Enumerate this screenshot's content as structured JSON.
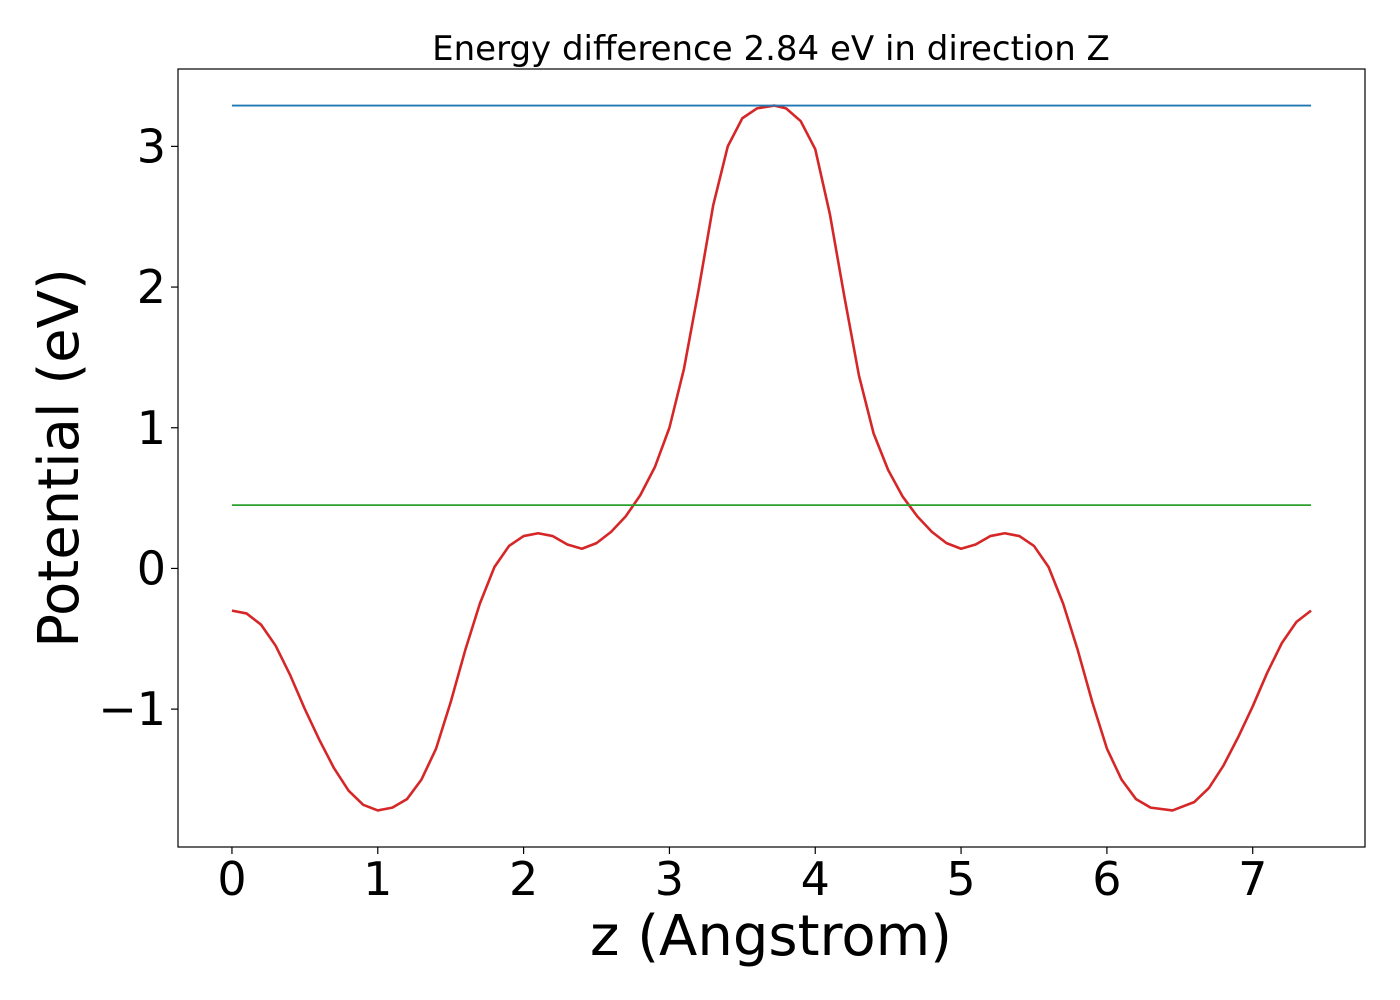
{
  "chart_data": {
    "type": "line",
    "title": "Energy difference 2.84 eV in direction Z",
    "xlabel": "z (Angstrom)",
    "ylabel": "Potential (eV)",
    "xlim": [
      -0.37,
      7.77
    ],
    "ylim": [
      -1.98,
      3.55
    ],
    "xticks": [
      0,
      1,
      2,
      3,
      4,
      5,
      6,
      7
    ],
    "xtick_labels": [
      "0",
      "1",
      "2",
      "3",
      "4",
      "5",
      "6",
      "7"
    ],
    "yticks": [
      -1,
      0,
      1,
      2,
      3
    ],
    "ytick_labels": [
      "−1",
      "0",
      "1",
      "2",
      "3"
    ],
    "grid": false,
    "series": [
      {
        "color": "#d62728",
        "points": [
          [
            0.0,
            -0.3
          ],
          [
            0.1,
            -0.32
          ],
          [
            0.2,
            -0.4
          ],
          [
            0.3,
            -0.55
          ],
          [
            0.4,
            -0.76
          ],
          [
            0.5,
            -1.0
          ],
          [
            0.6,
            -1.22
          ],
          [
            0.7,
            -1.42
          ],
          [
            0.8,
            -1.58
          ],
          [
            0.9,
            -1.68
          ],
          [
            1.0,
            -1.72
          ],
          [
            1.1,
            -1.7
          ],
          [
            1.2,
            -1.64
          ],
          [
            1.3,
            -1.5
          ],
          [
            1.4,
            -1.28
          ],
          [
            1.5,
            -0.95
          ],
          [
            1.6,
            -0.58
          ],
          [
            1.7,
            -0.25
          ],
          [
            1.8,
            0.01
          ],
          [
            1.9,
            0.16
          ],
          [
            2.0,
            0.23
          ],
          [
            2.1,
            0.25
          ],
          [
            2.2,
            0.23
          ],
          [
            2.3,
            0.17
          ],
          [
            2.4,
            0.14
          ],
          [
            2.5,
            0.18
          ],
          [
            2.6,
            0.26
          ],
          [
            2.7,
            0.37
          ],
          [
            2.8,
            0.52
          ],
          [
            2.9,
            0.72
          ],
          [
            3.0,
            1.0
          ],
          [
            3.1,
            1.42
          ],
          [
            3.2,
            1.98
          ],
          [
            3.3,
            2.58
          ],
          [
            3.4,
            3.0
          ],
          [
            3.5,
            3.2
          ],
          [
            3.6,
            3.27
          ],
          [
            3.72,
            3.29
          ],
          [
            3.8,
            3.27
          ],
          [
            3.9,
            3.18
          ],
          [
            4.0,
            2.98
          ],
          [
            4.1,
            2.52
          ],
          [
            4.2,
            1.93
          ],
          [
            4.3,
            1.37
          ],
          [
            4.4,
            0.96
          ],
          [
            4.5,
            0.7
          ],
          [
            4.6,
            0.51
          ],
          [
            4.7,
            0.37
          ],
          [
            4.8,
            0.26
          ],
          [
            4.9,
            0.18
          ],
          [
            5.0,
            0.14
          ],
          [
            5.1,
            0.17
          ],
          [
            5.2,
            0.23
          ],
          [
            5.3,
            0.25
          ],
          [
            5.4,
            0.23
          ],
          [
            5.5,
            0.16
          ],
          [
            5.6,
            0.01
          ],
          [
            5.7,
            -0.25
          ],
          [
            5.8,
            -0.58
          ],
          [
            5.9,
            -0.95
          ],
          [
            6.0,
            -1.28
          ],
          [
            6.1,
            -1.5
          ],
          [
            6.2,
            -1.64
          ],
          [
            6.3,
            -1.7
          ],
          [
            6.45,
            -1.72
          ],
          [
            6.6,
            -1.66
          ],
          [
            6.7,
            -1.56
          ],
          [
            6.8,
            -1.4
          ],
          [
            6.9,
            -1.2
          ],
          [
            7.0,
            -0.98
          ],
          [
            7.1,
            -0.74
          ],
          [
            7.2,
            -0.53
          ],
          [
            7.3,
            -0.38
          ],
          [
            7.4,
            -0.3
          ]
        ]
      },
      {
        "color": "#1f77b4",
        "points": [
          [
            0.0,
            3.29
          ],
          [
            7.4,
            3.29
          ]
        ]
      },
      {
        "color": "#2ca02c",
        "points": [
          [
            0.0,
            0.45
          ],
          [
            7.4,
            0.45
          ]
        ]
      }
    ]
  }
}
